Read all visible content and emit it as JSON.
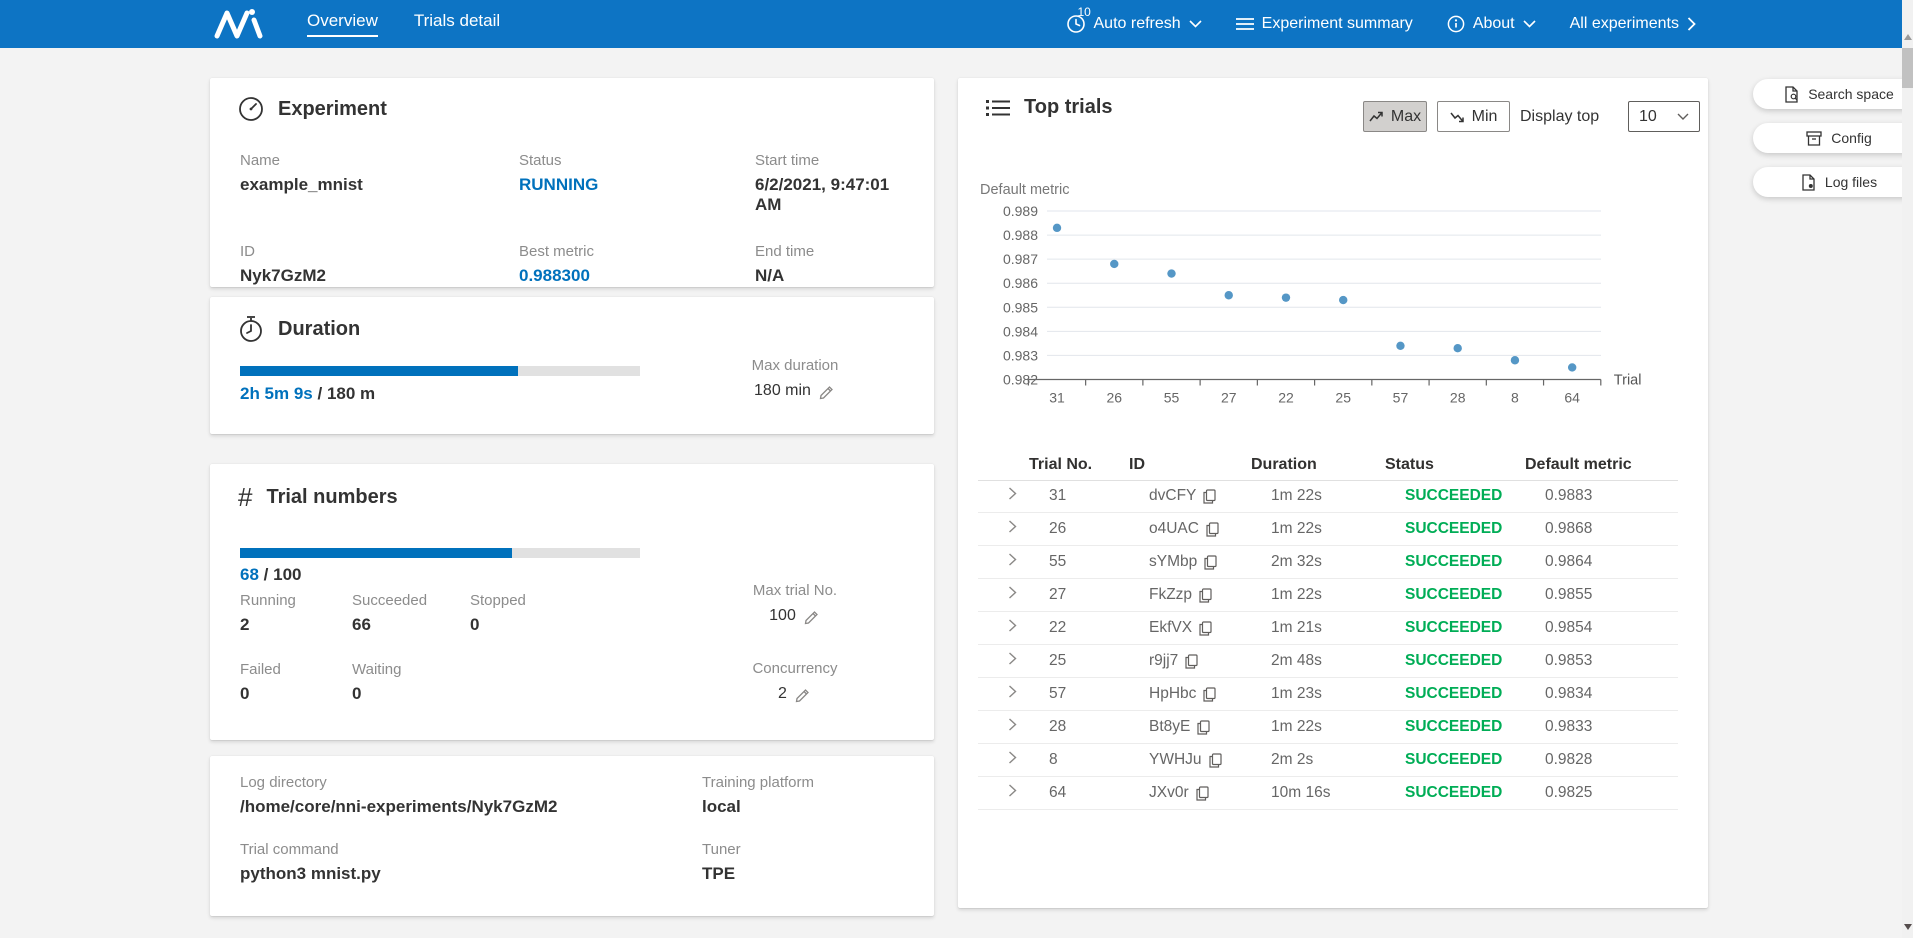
{
  "colors": {
    "header_bg": "#0d74c4",
    "accent": "#0071bc",
    "success": "#00ad56",
    "point": "#5597c6"
  },
  "header": {
    "nav": [
      {
        "label": "Overview"
      },
      {
        "label": "Trials detail"
      }
    ],
    "auto_refresh": {
      "badge": "10",
      "label": "Auto refresh"
    },
    "experiment_summary_label": "Experiment summary",
    "about_label": "About",
    "all_experiments_label": "All experiments"
  },
  "experiment": {
    "title": "Experiment",
    "fields": [
      {
        "label": "Name",
        "value": "example_mnist"
      },
      {
        "label": "Status",
        "value": "RUNNING"
      },
      {
        "label": "Start time",
        "value": "6/2/2021, 9:47:01 AM"
      },
      {
        "label": "ID",
        "value": "Nyk7GzM2"
      },
      {
        "label": "Best metric",
        "value": "0.988300"
      },
      {
        "label": "End time",
        "value": "N/A"
      }
    ]
  },
  "duration": {
    "title": "Duration",
    "progress_percent": 69.5,
    "elapsed": "2h 5m 9s",
    "separator": "/",
    "total": "180 m",
    "max_label": "Max duration",
    "max_value": "180 min"
  },
  "trial_numbers": {
    "title": "Trial numbers",
    "progress_percent": 68,
    "done": "68",
    "separator": "/",
    "total": "100",
    "stats": [
      {
        "label": "Running",
        "value": "2"
      },
      {
        "label": "Succeeded",
        "value": "66"
      },
      {
        "label": "Stopped",
        "value": "0"
      },
      {
        "label": "Failed",
        "value": "0"
      },
      {
        "label": "Waiting",
        "value": "0"
      }
    ],
    "max_trial_label": "Max trial No.",
    "max_trial_value": "100",
    "concurrency_label": "Concurrency",
    "concurrency_value": "2"
  },
  "config_info": {
    "fields": [
      {
        "label": "Log directory",
        "value": "/home/core/nni-experiments/Nyk7GzM2"
      },
      {
        "label": "Training platform",
        "value": "local"
      },
      {
        "label": "Trial command",
        "value": "python3 mnist.py"
      },
      {
        "label": "Tuner",
        "value": "TPE"
      }
    ]
  },
  "top_trials": {
    "title": "Top trials",
    "max_button": "Max",
    "min_button": "Min",
    "display_top_label": "Display top",
    "display_top_value": "10",
    "table": {
      "columns": [
        "Trial No.",
        "ID",
        "Duration",
        "Status",
        "Default metric"
      ],
      "rows": [
        {
          "trial_no": "31",
          "id": "dvCFY",
          "duration": "1m 22s",
          "status": "SUCCEEDED",
          "metric": "0.9883"
        },
        {
          "trial_no": "26",
          "id": "o4UAC",
          "duration": "1m 22s",
          "status": "SUCCEEDED",
          "metric": "0.9868"
        },
        {
          "trial_no": "55",
          "id": "sYMbp",
          "duration": "2m 32s",
          "status": "SUCCEEDED",
          "metric": "0.9864"
        },
        {
          "trial_no": "27",
          "id": "FkZzp",
          "duration": "1m 22s",
          "status": "SUCCEEDED",
          "metric": "0.9855"
        },
        {
          "trial_no": "22",
          "id": "EkfVX",
          "duration": "1m 21s",
          "status": "SUCCEEDED",
          "metric": "0.9854"
        },
        {
          "trial_no": "25",
          "id": "r9jj7",
          "duration": "2m 48s",
          "status": "SUCCEEDED",
          "metric": "0.9853"
        },
        {
          "trial_no": "57",
          "id": "HpHbc",
          "duration": "1m 23s",
          "status": "SUCCEEDED",
          "metric": "0.9834"
        },
        {
          "trial_no": "28",
          "id": "Bt8yE",
          "duration": "1m 22s",
          "status": "SUCCEEDED",
          "metric": "0.9833"
        },
        {
          "trial_no": "8",
          "id": "YWHJu",
          "duration": "2m 2s",
          "status": "SUCCEEDED",
          "metric": "0.9828"
        },
        {
          "trial_no": "64",
          "id": "JXv0r",
          "duration": "10m 16s",
          "status": "SUCCEEDED",
          "metric": "0.9825"
        }
      ]
    }
  },
  "chart_data": {
    "type": "scatter",
    "title": "",
    "categories": [
      "31",
      "26",
      "55",
      "27",
      "22",
      "25",
      "57",
      "28",
      "8",
      "64"
    ],
    "values": [
      0.9883,
      0.9868,
      0.9864,
      0.9855,
      0.9854,
      0.9853,
      0.9834,
      0.9833,
      0.9828,
      0.9825
    ],
    "xlabel": "Trial",
    "ylabel": "Default metric",
    "ylim": [
      0.982,
      0.989
    ],
    "yticks": [
      0.982,
      0.983,
      0.984,
      0.985,
      0.986,
      0.987,
      0.988,
      0.989
    ],
    "grid": true,
    "legend": null
  },
  "side_buttons": [
    {
      "label": "Search space"
    },
    {
      "label": "Config"
    },
    {
      "label": "Log files"
    }
  ]
}
